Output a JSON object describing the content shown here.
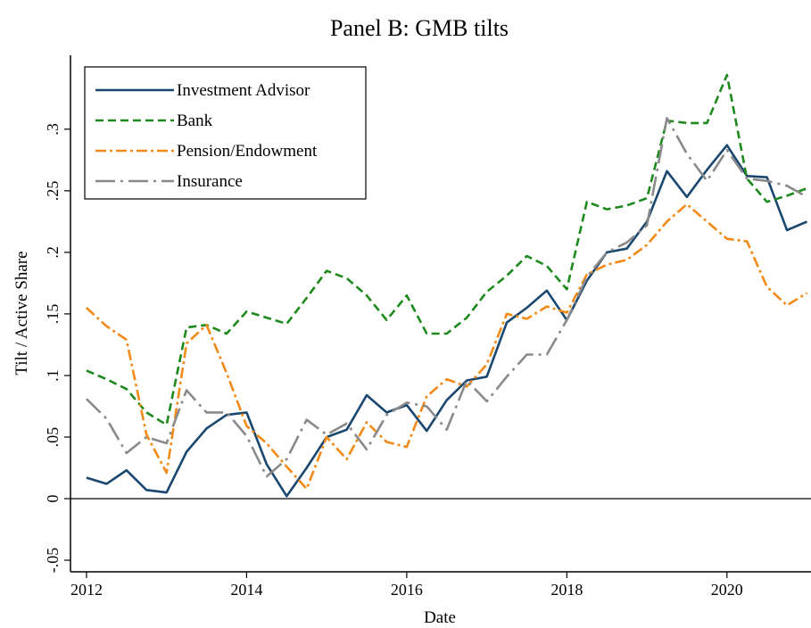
{
  "chart_data": {
    "type": "line",
    "title": "Panel B: GMB tilts",
    "xlabel": "Date",
    "ylabel": "Tilt / Active Share",
    "x": [
      2012,
      2012.25,
      2012.5,
      2012.75,
      2013,
      2013.25,
      2013.5,
      2013.75,
      2014,
      2014.25,
      2014.5,
      2014.75,
      2015,
      2015.25,
      2015.5,
      2015.75,
      2016,
      2016.25,
      2016.5,
      2016.75,
      2017,
      2017.25,
      2017.5,
      2017.75,
      2018,
      2018.25,
      2018.5,
      2018.75,
      2019,
      2019.25,
      2019.5,
      2019.75,
      2020,
      2020.25,
      2020.5,
      2020.75,
      2021
    ],
    "series": [
      {
        "name": "Investment Advisor",
        "color": "#1a476f",
        "dash": "none",
        "values": [
          0.017,
          0.012,
          0.023,
          0.007,
          0.005,
          0.038,
          0.057,
          0.068,
          0.07,
          0.028,
          0.002,
          0.025,
          0.05,
          0.056,
          0.084,
          0.07,
          0.076,
          0.055,
          0.08,
          0.096,
          0.099,
          0.143,
          0.155,
          0.169,
          0.145,
          0.177,
          0.2,
          0.203,
          0.225,
          0.266,
          0.245,
          0.267,
          0.287,
          0.262,
          0.261,
          0.218,
          0.225
        ]
      },
      {
        "name": "Bank",
        "color": "#1e8a1e",
        "dash": "9,5",
        "values": [
          0.104,
          0.097,
          0.089,
          0.07,
          0.06,
          0.139,
          0.141,
          0.134,
          0.152,
          0.147,
          0.142,
          0.163,
          0.185,
          0.179,
          0.165,
          0.145,
          0.165,
          0.134,
          0.134,
          0.147,
          0.168,
          0.181,
          0.197,
          0.189,
          0.17,
          0.241,
          0.235,
          0.238,
          0.244,
          0.307,
          0.305,
          0.305,
          0.344,
          0.26,
          0.241,
          0.246,
          0.252
        ]
      },
      {
        "name": "Pension/Endowment",
        "color": "#f28a17",
        "dash": "12,4,3,4",
        "values": [
          0.155,
          0.14,
          0.129,
          0.052,
          0.021,
          0.126,
          0.141,
          0.102,
          0.059,
          0.045,
          0.026,
          0.008,
          0.05,
          0.032,
          0.062,
          0.046,
          0.042,
          0.083,
          0.097,
          0.091,
          0.109,
          0.15,
          0.146,
          0.156,
          0.151,
          0.182,
          0.19,
          0.194,
          0.206,
          0.225,
          0.239,
          0.225,
          0.211,
          0.209,
          0.172,
          0.157,
          0.167
        ]
      },
      {
        "name": "Insurance",
        "color": "#8a8a8a",
        "dash": "22,6,3,6",
        "values": [
          0.081,
          0.065,
          0.037,
          0.05,
          0.045,
          0.088,
          0.07,
          0.07,
          0.051,
          0.018,
          0.032,
          0.064,
          0.052,
          0.061,
          0.04,
          0.068,
          0.078,
          0.075,
          0.056,
          0.096,
          0.079,
          0.099,
          0.117,
          0.117,
          0.145,
          0.18,
          0.2,
          0.208,
          0.222,
          0.309,
          0.28,
          0.258,
          0.283,
          0.26,
          0.258,
          0.254,
          0.245
        ]
      }
    ],
    "xlim": [
      2011.8,
      2021.05
    ],
    "ylim": [
      -0.0594,
      0.36
    ],
    "xticks": [
      2012,
      2014,
      2016,
      2018,
      2020
    ],
    "yticks": [
      {
        "value": -0.05,
        "label": "-.05"
      },
      0,
      {
        "value": 0.05,
        "label": ".05"
      },
      {
        "value": 0.1,
        "label": ".1"
      },
      {
        "value": 0.15,
        "label": ".15"
      },
      {
        "value": 0.2,
        "label": ".2"
      },
      {
        "value": 0.25,
        "label": ".25"
      },
      {
        "value": 0.3,
        "label": ".3"
      }
    ],
    "yline": 0,
    "legend": "top-left",
    "grid": false
  }
}
